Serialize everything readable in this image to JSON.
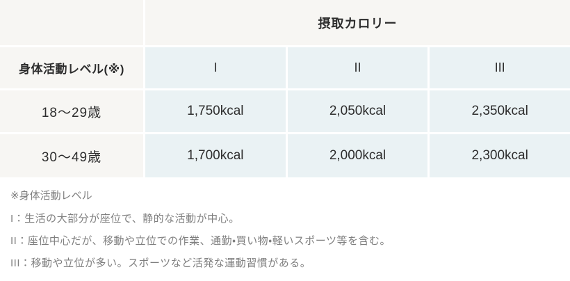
{
  "table": {
    "group_header": "摂取カロリー",
    "row_header": "身体活動レベル(※)",
    "levels": [
      "I",
      "II",
      "III"
    ],
    "rows": [
      {
        "age": "18〜29歳",
        "values": [
          "1,750kcal",
          "2,050kcal",
          "2,350kcal"
        ]
      },
      {
        "age": "30〜49歳",
        "values": [
          "1,700kcal",
          "2,000kcal",
          "2,300kcal"
        ]
      }
    ]
  },
  "footnotes": {
    "title": "※身体活動レベル",
    "items": [
      "I：生活の大部分が座位で、静的な活動が中心。",
      "II：座位中心だが、移動や立位での作業、通勤・買い物・軽いスポーツ等を含む。",
      "III：移動や立位が多い。スポーツなど活発な運動習慣がある。"
    ]
  },
  "chart_data": {
    "type": "table",
    "title": "摂取カロリー",
    "columns": [
      "身体活動レベル(※)",
      "I",
      "II",
      "III"
    ],
    "rows": [
      [
        "18〜29歳",
        "1,750kcal",
        "2,050kcal",
        "2,350kcal"
      ],
      [
        "30〜49歳",
        "1,700kcal",
        "2,000kcal",
        "2,300kcal"
      ]
    ],
    "values_kcal": {
      "18〜29歳": [
        1750,
        2050,
        2350
      ],
      "30〜49歳": [
        1700,
        2000,
        2300
      ]
    },
    "notes": [
      "※身体活動レベル",
      "I：生活の大部分が座位で、静的な活動が中心。",
      "II：座位中心だが、移動や立位での作業、通勤・買い物・軽いスポーツ等を含む。",
      "III：移動や立位が多い。スポーツなど活発な運動習慣がある。"
    ]
  },
  "colors": {
    "row_header_bg": "#f7f6f3",
    "value_cell_bg": "#eaf2f4",
    "table_text": "#2d2d2d",
    "footnote_text": "#7f7f7f",
    "background": "#ffffff"
  }
}
